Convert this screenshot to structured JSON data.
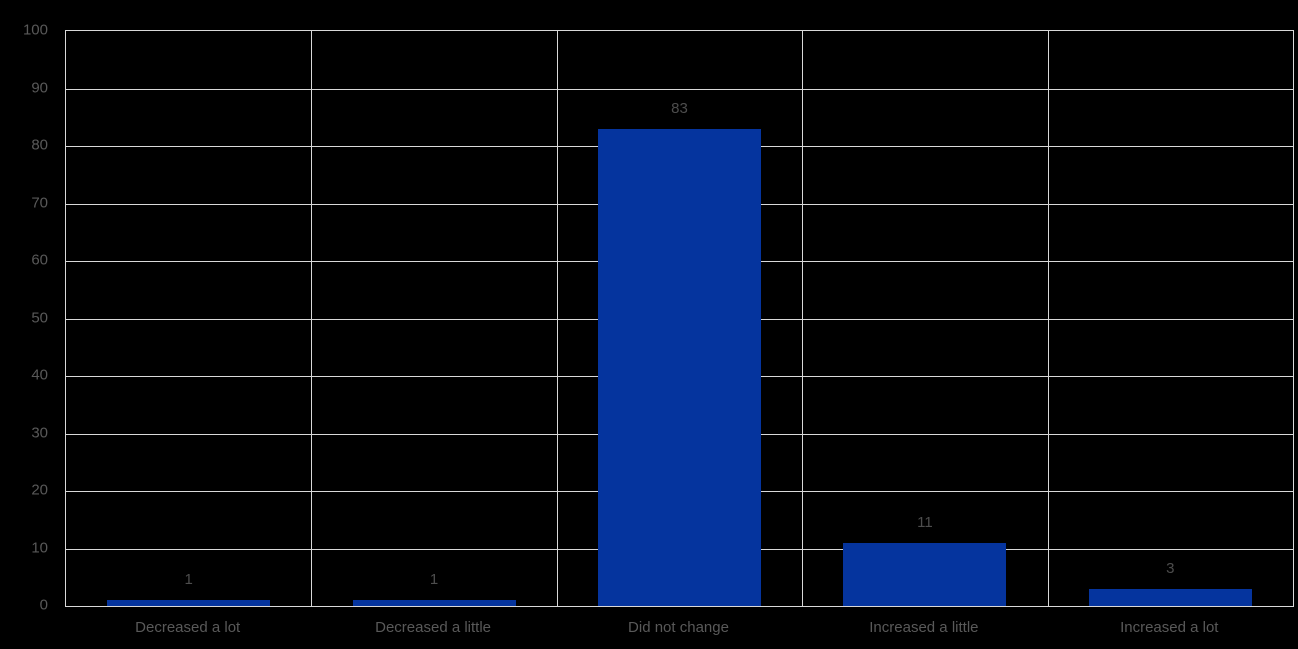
{
  "chart_data": {
    "type": "bar",
    "title": "",
    "xlabel": "",
    "ylabel": "",
    "categories": [
      "Decreased a lot",
      "Decreased a little",
      "Did not change",
      "Increased a little",
      "Increased a lot"
    ],
    "values": [
      1,
      1,
      83,
      11,
      3
    ],
    "data_labels": [
      "1",
      "1",
      "83",
      "11",
      "3"
    ],
    "ylim": [
      0,
      100
    ],
    "yticks": [
      0,
      10,
      20,
      30,
      40,
      50,
      60,
      70,
      80,
      90,
      100
    ],
    "grid": true,
    "legend": false,
    "colors": {
      "background": "#000000",
      "bar": "#05349E",
      "gridline": "#D9D9D9",
      "axis_text": "#595959",
      "data_label_text": "#4D4D4D"
    }
  }
}
